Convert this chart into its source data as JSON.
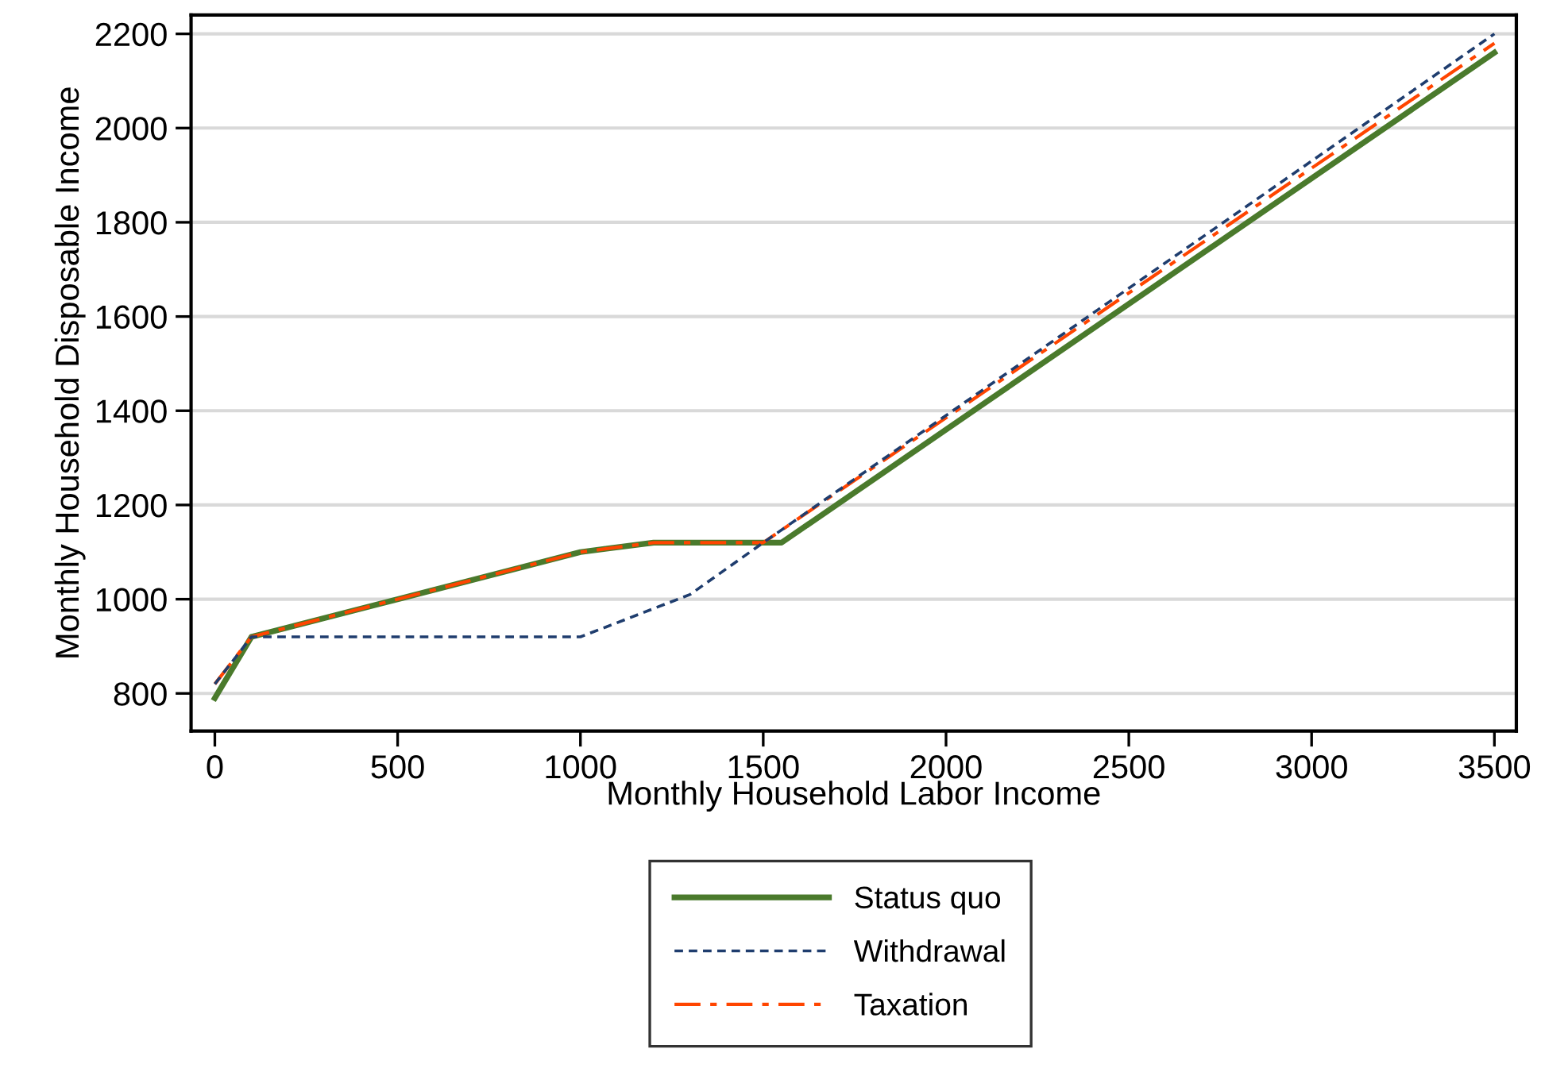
{
  "chart_data": {
    "type": "line",
    "xlabel": "Monthly Household Labor Income",
    "ylabel": "Monthly Household Disposable Income",
    "xlim": [
      -65,
      3560
    ],
    "ylim": [
      720,
      2240
    ],
    "xticks": [
      0,
      500,
      1000,
      1500,
      2000,
      2500,
      3000,
      3500
    ],
    "yticks": [
      800,
      1000,
      1200,
      1400,
      1600,
      1800,
      2000,
      2200
    ],
    "grid": "y",
    "legend": "bottom",
    "marker": "none",
    "series": [
      {
        "name": "Status quo",
        "color": "#4a7a2c",
        "line_style": "solid",
        "x": [
          0,
          100,
          1000,
          1200,
          1550,
          3500
        ],
        "values": [
          790,
          920,
          1100,
          1120,
          1120,
          2160
        ]
      },
      {
        "name": "Withdrawal",
        "color": "#1f3d6e",
        "line_style": "dashed",
        "x": [
          0,
          100,
          1000,
          1300,
          1500,
          3500
        ],
        "values": [
          820,
          920,
          920,
          1010,
          1120,
          2200
        ]
      },
      {
        "name": "Taxation",
        "color": "#ff4500",
        "line_style": "dashdot",
        "x": [
          0,
          100,
          1000,
          1200,
          1500,
          3500
        ],
        "values": [
          820,
          920,
          1100,
          1120,
          1120,
          2180
        ]
      }
    ]
  }
}
